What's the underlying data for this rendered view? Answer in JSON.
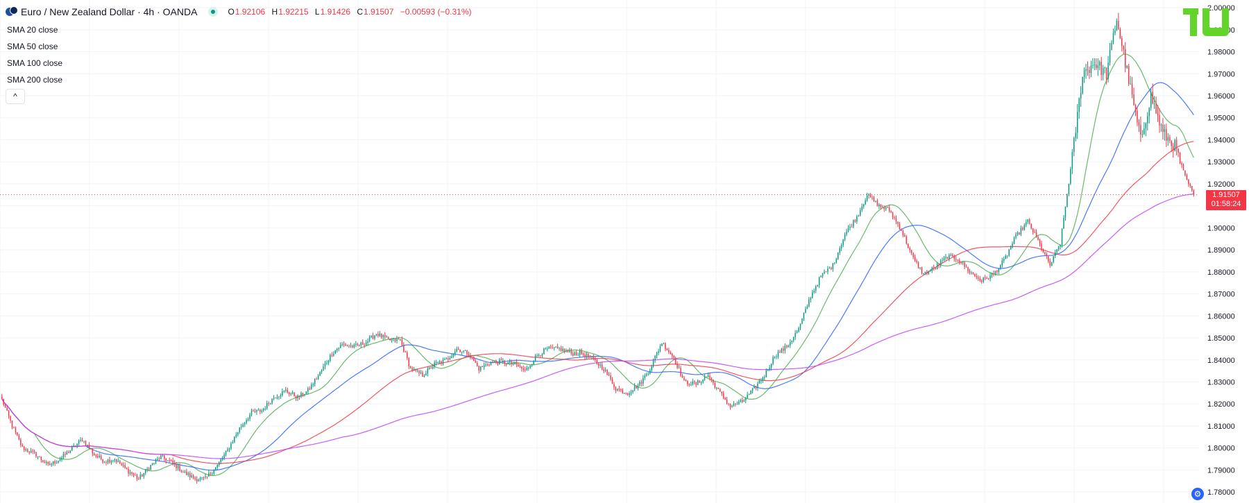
{
  "header": {
    "title": "Euro / New Zealand Dollar · 4h · OANDA",
    "ohlc": {
      "open_label": "O",
      "open": "1.92106",
      "high_label": "H",
      "high": "1.92215",
      "low_label": "L",
      "low": "1.91426",
      "close_label": "C",
      "close": "1.91507",
      "change": "−0.00593 (−0.31%)"
    }
  },
  "indicators": [
    {
      "label": "SMA 20 close",
      "color": "#4caf50"
    },
    {
      "label": "SMA 50 close",
      "color": "#2962ff"
    },
    {
      "label": "SMA 100 close",
      "color": "#f23645"
    },
    {
      "label": "SMA 200 close",
      "color": "#c040ff"
    }
  ],
  "collapse_glyph": "^",
  "logo_text": "TV",
  "price_badge": {
    "price": "1.91507",
    "countdown": "01:58:24"
  },
  "colors": {
    "up": "#089981",
    "down": "#f23645",
    "grid": "#f0f3fa",
    "axis_text": "#131722"
  },
  "chart_data": {
    "type": "candlestick",
    "title": "Euro / New Zealand Dollar · 4h · OANDA",
    "ylim": [
      1.775,
      2.0035
    ],
    "y_ticks": [
      "1.78000",
      "1.79000",
      "1.80000",
      "1.81000",
      "1.82000",
      "1.83000",
      "1.84000",
      "1.85000",
      "1.86000",
      "1.87000",
      "1.88000",
      "1.89000",
      "1.90000",
      "1.91000",
      "1.92000",
      "1.93000",
      "1.94000",
      "1.95000",
      "1.96000",
      "1.97000",
      "1.98000",
      "1.99000",
      "2.00000"
    ],
    "last_price": 1.91507,
    "close_path_anchors": [
      [
        0,
        1.822
      ],
      [
        6,
        1.81
      ],
      [
        12,
        1.8
      ],
      [
        20,
        1.797
      ],
      [
        27,
        1.792
      ],
      [
        34,
        1.795
      ],
      [
        40,
        1.799
      ],
      [
        47,
        1.804
      ],
      [
        54,
        1.797
      ],
      [
        60,
        1.794
      ],
      [
        66,
        1.795
      ],
      [
        73,
        1.79
      ],
      [
        80,
        1.786
      ],
      [
        87,
        1.792
      ],
      [
        93,
        1.796
      ],
      [
        100,
        1.793
      ],
      [
        106,
        1.789
      ],
      [
        113,
        1.786
      ],
      [
        119,
        1.786
      ],
      [
        126,
        1.792
      ],
      [
        132,
        1.799
      ],
      [
        139,
        1.809
      ],
      [
        146,
        1.816
      ],
      [
        152,
        1.817
      ],
      [
        159,
        1.823
      ],
      [
        166,
        1.826
      ],
      [
        173,
        1.823
      ],
      [
        179,
        1.826
      ],
      [
        186,
        1.834
      ],
      [
        193,
        1.843
      ],
      [
        199,
        1.847
      ],
      [
        206,
        1.846
      ],
      [
        213,
        1.848
      ],
      [
        219,
        1.852
      ],
      [
        226,
        1.849
      ],
      [
        233,
        1.849
      ],
      [
        239,
        1.836
      ],
      [
        246,
        1.833
      ],
      [
        253,
        1.838
      ],
      [
        260,
        1.84
      ],
      [
        266,
        1.845
      ],
      [
        273,
        1.843
      ],
      [
        279,
        1.836
      ],
      [
        286,
        1.839
      ],
      [
        293,
        1.839
      ],
      [
        300,
        1.838
      ],
      [
        306,
        1.835
      ],
      [
        313,
        1.842
      ],
      [
        319,
        1.845
      ],
      [
        326,
        1.845
      ],
      [
        333,
        1.843
      ],
      [
        339,
        1.843
      ],
      [
        346,
        1.84
      ],
      [
        352,
        1.836
      ],
      [
        359,
        1.827
      ],
      [
        366,
        1.825
      ],
      [
        373,
        1.829
      ],
      [
        379,
        1.836
      ],
      [
        386,
        1.848
      ],
      [
        393,
        1.841
      ],
      [
        399,
        1.83
      ],
      [
        406,
        1.829
      ],
      [
        413,
        1.833
      ],
      [
        419,
        1.826
      ],
      [
        426,
        1.819
      ],
      [
        433,
        1.821
      ],
      [
        439,
        1.826
      ],
      [
        446,
        1.833
      ],
      [
        452,
        1.842
      ],
      [
        459,
        1.846
      ],
      [
        466,
        1.854
      ],
      [
        473,
        1.869
      ],
      [
        479,
        1.878
      ],
      [
        486,
        1.883
      ],
      [
        493,
        1.897
      ],
      [
        500,
        1.905
      ],
      [
        506,
        1.915
      ],
      [
        513,
        1.91
      ],
      [
        519,
        1.908
      ],
      [
        526,
        1.899
      ],
      [
        533,
        1.886
      ],
      [
        539,
        1.879
      ],
      [
        546,
        1.882
      ],
      [
        553,
        1.887
      ],
      [
        559,
        1.886
      ],
      [
        566,
        1.88
      ],
      [
        573,
        1.876
      ],
      [
        580,
        1.879
      ],
      [
        586,
        1.885
      ],
      [
        593,
        1.896
      ],
      [
        600,
        1.903
      ],
      [
        606,
        1.894
      ],
      [
        613,
        1.883
      ],
      [
        619,
        1.893
      ],
      [
        626,
        1.932
      ],
      [
        632,
        1.97
      ],
      [
        639,
        1.975
      ],
      [
        646,
        1.97
      ],
      [
        652,
        1.995
      ],
      [
        659,
        1.967
      ],
      [
        666,
        1.94
      ],
      [
        672,
        1.96
      ],
      [
        679,
        1.943
      ],
      [
        686,
        1.937
      ],
      [
        692,
        1.923
      ],
      [
        697,
        1.915
      ]
    ],
    "moving_averages": [
      {
        "name": "SMA 20 close",
        "period": 20,
        "color": "#4caf50"
      },
      {
        "name": "SMA 50 close",
        "period": 50,
        "color": "#2962ff"
      },
      {
        "name": "SMA 100 close",
        "period": 100,
        "color": "#f23645"
      },
      {
        "name": "SMA 200 close",
        "period": 200,
        "color": "#c040ff"
      }
    ]
  }
}
